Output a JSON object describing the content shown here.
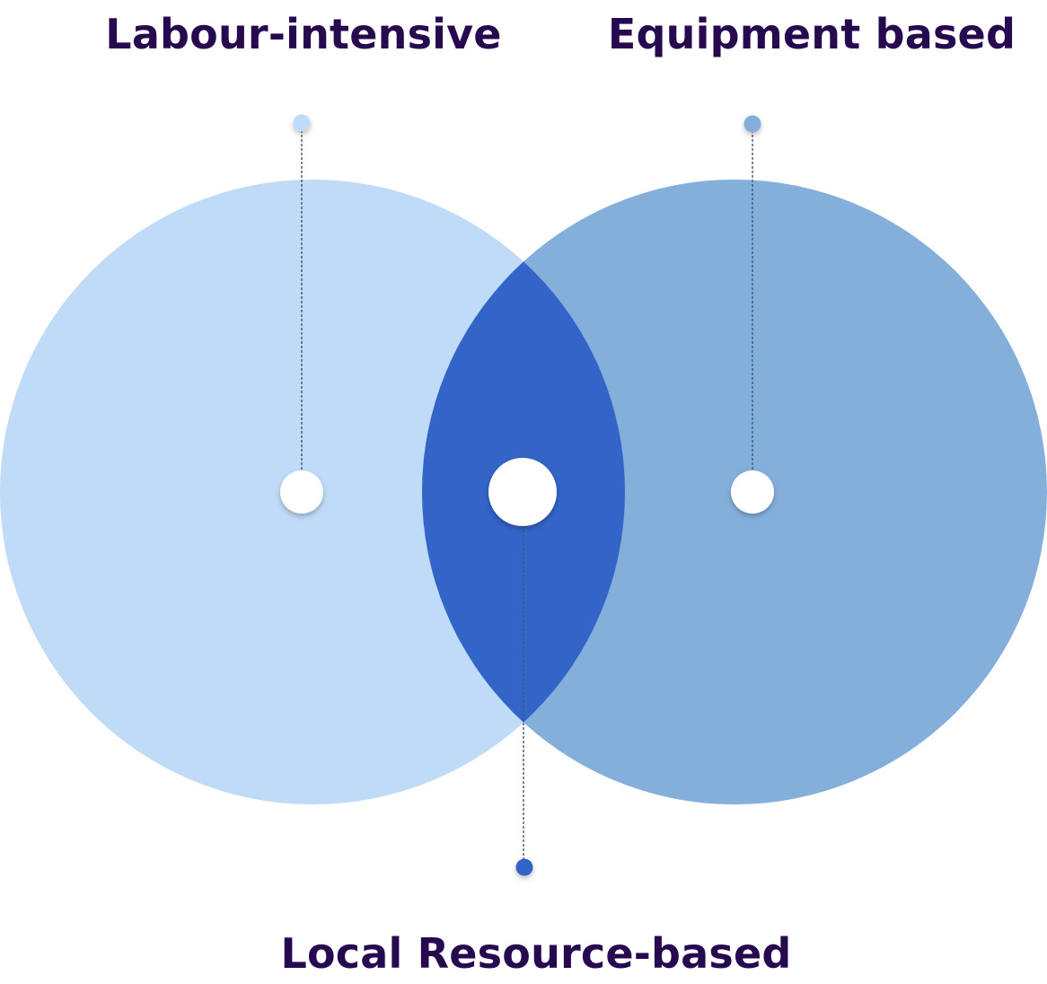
{
  "labels": {
    "left": "Labour-intensive",
    "right": "Equipment based",
    "intersection": "Local Resource-based"
  },
  "colors": {
    "text": "#26094F",
    "left_circle": "#BFDBF7",
    "right_circle": "#85AFDB",
    "intersection": "#3364C7",
    "marker": "#FFFFFF",
    "leader_line": "#3F5A78"
  }
}
